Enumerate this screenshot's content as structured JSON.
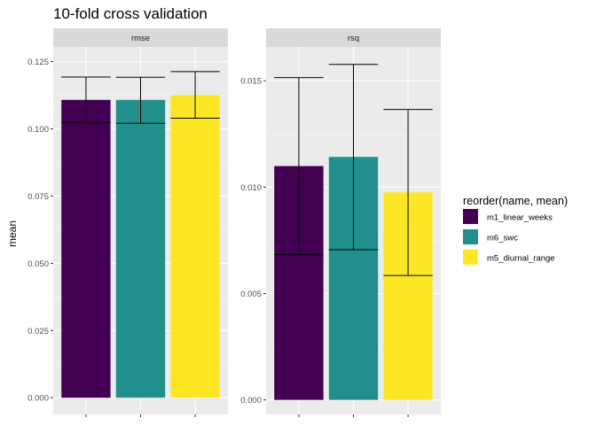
{
  "chart_data": {
    "type": "bar",
    "title": "10-fold cross validation",
    "ylabel": "mean",
    "xlabel": "",
    "legend": {
      "title": "reorder(name, mean)",
      "placement": "right",
      "items": [
        {
          "name": "m1_linear_weeks",
          "color": "#440154"
        },
        {
          "name": "m6_swc",
          "color": "#21908C"
        },
        {
          "name": "m5_diurnal_range",
          "color": "#FDE725"
        }
      ]
    },
    "grid": true,
    "facets": [
      {
        "label": "rmse",
        "ylim": [
          -0.0062,
          0.1305
        ],
        "ticks": [
          0.0,
          0.025,
          0.05,
          0.075,
          0.1,
          0.125
        ],
        "tick_labels": [
          "0.000",
          "0.025",
          "0.050",
          "0.075",
          "0.100",
          "0.125"
        ],
        "series": [
          {
            "name": "m1_linear_weeks",
            "value": 0.1108,
            "err_low": 0.1024,
            "err_high": 0.1193
          },
          {
            "name": "m6_swc",
            "value": 0.1108,
            "err_low": 0.1021,
            "err_high": 0.1192
          },
          {
            "name": "m5_diurnal_range",
            "value": 0.1126,
            "err_low": 0.104,
            "err_high": 0.1213
          }
        ]
      },
      {
        "label": "rsq",
        "ylim": [
          -0.00068,
          0.01659
        ],
        "ticks": [
          0.0,
          0.005,
          0.01,
          0.015
        ],
        "tick_labels": [
          "0.000",
          "0.005",
          "0.010",
          "0.015"
        ],
        "series": [
          {
            "name": "m1_linear_weeks",
            "value": 0.01099,
            "err_low": 0.00682,
            "err_high": 0.01515
          },
          {
            "name": "m6_swc",
            "value": 0.01142,
            "err_low": 0.00706,
            "err_high": 0.01577
          },
          {
            "name": "m5_diurnal_range",
            "value": 0.00975,
            "err_low": 0.00585,
            "err_high": 0.01365
          }
        ]
      }
    ]
  }
}
